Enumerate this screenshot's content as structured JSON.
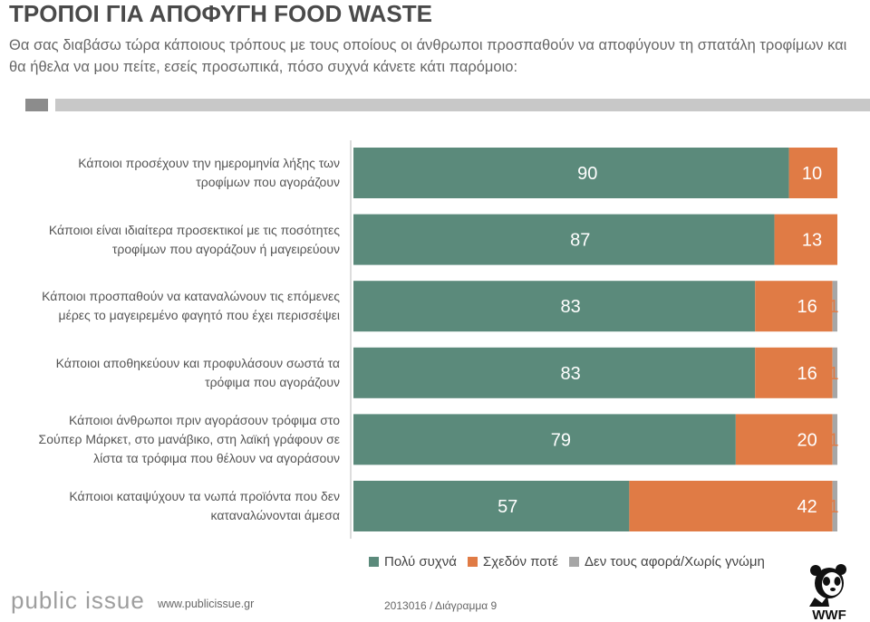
{
  "header": {
    "title": "ΤΡΟΠΟΙ ΓΙΑ ΑΠΟΦΥΓΗ FOOD WASTE",
    "subtitle": "Θα σας διαβάσω τώρα κάποιους τρόπους με τους οποίους οι άνθρωποι προσπαθούν να αποφύγουν τη σπατάλη τροφίμων και θα ήθελα να μου πείτε, εσείς προσωπικά, πόσο συχνά κάνετε κάτι παρόμοιο:"
  },
  "chart_data": {
    "type": "bar",
    "stacked": true,
    "orientation": "horizontal",
    "title": "",
    "xlabel": "",
    "ylabel": "",
    "xlim": [
      0,
      100
    ],
    "grid": false,
    "legend_position": "bottom",
    "categories": [
      "Κάποιοι προσέχουν την ημερομηνία λήξης των τροφίμων που αγοράζουν",
      "Κάποιοι είναι ιδιαίτερα προσεκτικοί με τις ποσότητες τροφίμων που αγοράζουν ή μαγειρεύουν",
      "Κάποιοι προσπαθούν να καταναλώνουν τις επόμενες μέρες το μαγειρεμένο φαγητό που έχει περισσέψει",
      "Κάποιοι αποθηκεύουν και προφυλάσουν σωστά τα τρόφιμα που αγοράζουν",
      "Κάποιοι άνθρωποι πριν αγοράσουν τρόφιμα στο Σούπερ Μάρκετ, στο μανάβικο, στη λαϊκή γράφουν σε λίστα τα τρόφιμα που θέλουν να αγοράσουν",
      "Κάποιοι καταψύχουν τα νωπά προϊόντα που δεν καταναλώνονται άμεσα"
    ],
    "category_lines": [
      [
        "Κάποιοι προσέχουν την ημερομηνία λήξης των",
        "τροφίμων που αγοράζουν"
      ],
      [
        "Κάποιοι είναι ιδιαίτερα προσεκτικοί με τις ποσότητες",
        "τροφίμων που αγοράζουν ή μαγειρεύουν"
      ],
      [
        "Κάποιοι προσπαθούν να καταναλώνουν τις επόμενες",
        "μέρες το μαγειρεμένο φαγητό που έχει περισσέψει"
      ],
      [
        "Κάποιοι αποθηκεύουν και προφυλάσουν σωστά τα",
        "τρόφιμα που αγοράζουν"
      ],
      [
        "Κάποιοι άνθρωποι πριν αγοράσουν τρόφιμα στο",
        "Σούπερ Μάρκετ, στο μανάβικο, στη λαϊκή γράφουν σε",
        "λίστα τα τρόφιμα που θέλουν να αγοράσουν"
      ],
      [
        "Κάποιοι καταψύχουν τα νωπά προϊόντα που δεν",
        "καταναλώνονται άμεσα"
      ]
    ],
    "series": [
      {
        "name": "Πολύ συχνά",
        "color": "#5b8a7b",
        "values": [
          90,
          87,
          83,
          83,
          79,
          57
        ]
      },
      {
        "name": "Σχεδόν ποτέ",
        "color": "#e07b45",
        "values": [
          10,
          13,
          16,
          16,
          20,
          42
        ]
      },
      {
        "name": "Δεν τους αφορά/Χωρίς γνώμη",
        "color": "#a6a6a6",
        "values": [
          null,
          null,
          1,
          1,
          1,
          1
        ]
      }
    ]
  },
  "footer": {
    "logo": "public issue",
    "url": "www.publicissue.gr",
    "ref": "2013016 / Διάγραμμα 9",
    "partner_logo": "WWF"
  }
}
